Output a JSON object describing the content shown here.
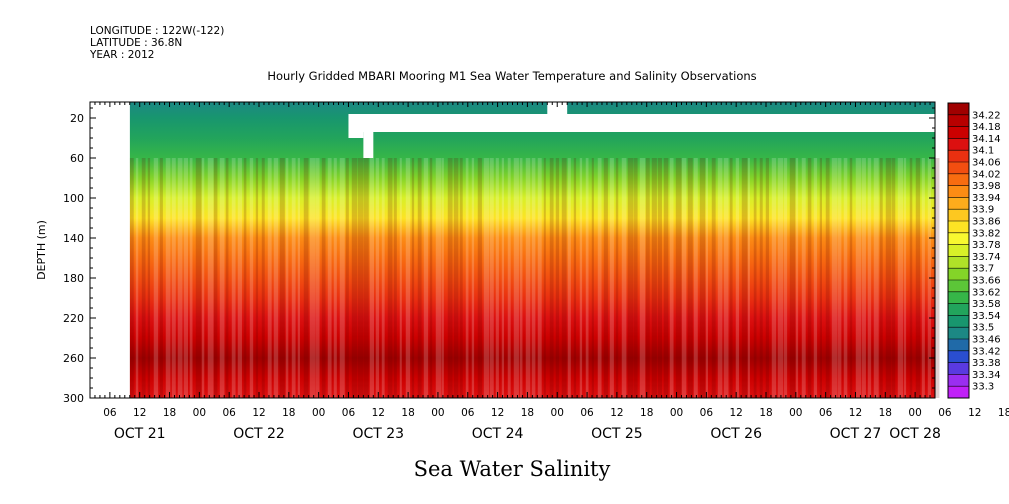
{
  "meta": {
    "longitude": "LONGITUDE : 122W(-122)",
    "latitude": "LATITUDE : 36.8N",
    "year": "YEAR : 2012"
  },
  "chart_data": {
    "type": "heatmap",
    "title": "Hourly Gridded MBARI Mooring M1 Sea Water Temperature and Salinity Observations",
    "subtitle": "Sea Water Salinity",
    "ylabel": "DEPTH (m)",
    "xlabel": "",
    "ylim": [
      300,
      4
    ],
    "y_reversed": true,
    "y_ticks": [
      20,
      60,
      100,
      140,
      180,
      220,
      260,
      300
    ],
    "x_hour_ticks": [
      "06",
      "12",
      "18",
      "00",
      "06",
      "12",
      "18",
      "00",
      "06",
      "12",
      "18",
      "00",
      "06",
      "12",
      "18",
      "00",
      "06",
      "12",
      "18",
      "00",
      "06",
      "12",
      "18",
      "00",
      "06",
      "12",
      "18",
      "00",
      "06",
      "12",
      "18",
      "00",
      "06",
      "12",
      "18",
      "00",
      "06"
    ],
    "x_day_labels": [
      {
        "label": "OCT 21",
        "hour": 12
      },
      {
        "label": "OCT 22",
        "hour": 36
      },
      {
        "label": "OCT 23",
        "hour": 60
      },
      {
        "label": "OCT 24",
        "hour": 84
      },
      {
        "label": "OCT 25",
        "hour": 108
      },
      {
        "label": "OCT 26",
        "hour": 132
      },
      {
        "label": "OCT 27",
        "hour": 156
      },
      {
        "label": "OCT 28",
        "hour": 168
      }
    ],
    "x_range_hours": [
      2,
      172
    ],
    "data_start_hour": 10,
    "colorbar_levels": [
      "34.22",
      "34.18",
      "34.14",
      "34.1",
      "34.06",
      "34.02",
      "33.98",
      "33.94",
      "33.9",
      "33.86",
      "33.82",
      "33.78",
      "33.74",
      "33.7",
      "33.66",
      "33.62",
      "33.58",
      "33.54",
      "33.5",
      "33.46",
      "33.42",
      "33.38",
      "33.34",
      "33.3"
    ],
    "colorbar_colors": [
      "#a00000",
      "#b80000",
      "#cc0000",
      "#dc1010",
      "#ea3010",
      "#f24e10",
      "#f86c10",
      "#fc8c14",
      "#fdac1c",
      "#fdc820",
      "#fde424",
      "#f8f830",
      "#d8f028",
      "#b0e228",
      "#84d428",
      "#5cc638",
      "#36b648",
      "#22a45c",
      "#18966e",
      "#1c8884",
      "#206aa8",
      "#2a4ed0",
      "#5a3ae0",
      "#9a2ef0",
      "#c020f8"
    ],
    "series": [
      {
        "depth": 4,
        "salinity": 33.48
      },
      {
        "depth": 20,
        "salinity": 33.5
      },
      {
        "depth": 40,
        "salinity": 33.54
      },
      {
        "depth": 60,
        "salinity": 33.58
      },
      {
        "depth": 80,
        "salinity": 33.64
      },
      {
        "depth": 100,
        "salinity": 33.72
      },
      {
        "depth": 120,
        "salinity": 33.82
      },
      {
        "depth": 140,
        "salinity": 33.92
      },
      {
        "depth": 160,
        "salinity": 33.98
      },
      {
        "depth": 180,
        "salinity": 34.02
      },
      {
        "depth": 200,
        "salinity": 34.06
      },
      {
        "depth": 220,
        "salinity": 34.12
      },
      {
        "depth": 240,
        "salinity": 34.16
      },
      {
        "depth": 260,
        "salinity": 34.2
      },
      {
        "depth": 280,
        "salinity": 34.16
      },
      {
        "depth": 300,
        "salinity": 34.12
      }
    ],
    "missing_regions": [
      {
        "hour_start": 2,
        "hour_end": 10,
        "depth_top": 4,
        "depth_bottom": 300
      },
      {
        "hour_start": 54,
        "hour_end": 172,
        "depth_top": 16,
        "depth_bottom": 34
      },
      {
        "hour_start": 54,
        "hour_end": 57,
        "depth_top": 34,
        "depth_bottom": 40
      },
      {
        "hour_start": 57,
        "hour_end": 59,
        "depth_top": 34,
        "depth_bottom": 60
      },
      {
        "hour_start": 94,
        "hour_end": 98,
        "depth_top": 4,
        "depth_bottom": 16
      }
    ]
  }
}
